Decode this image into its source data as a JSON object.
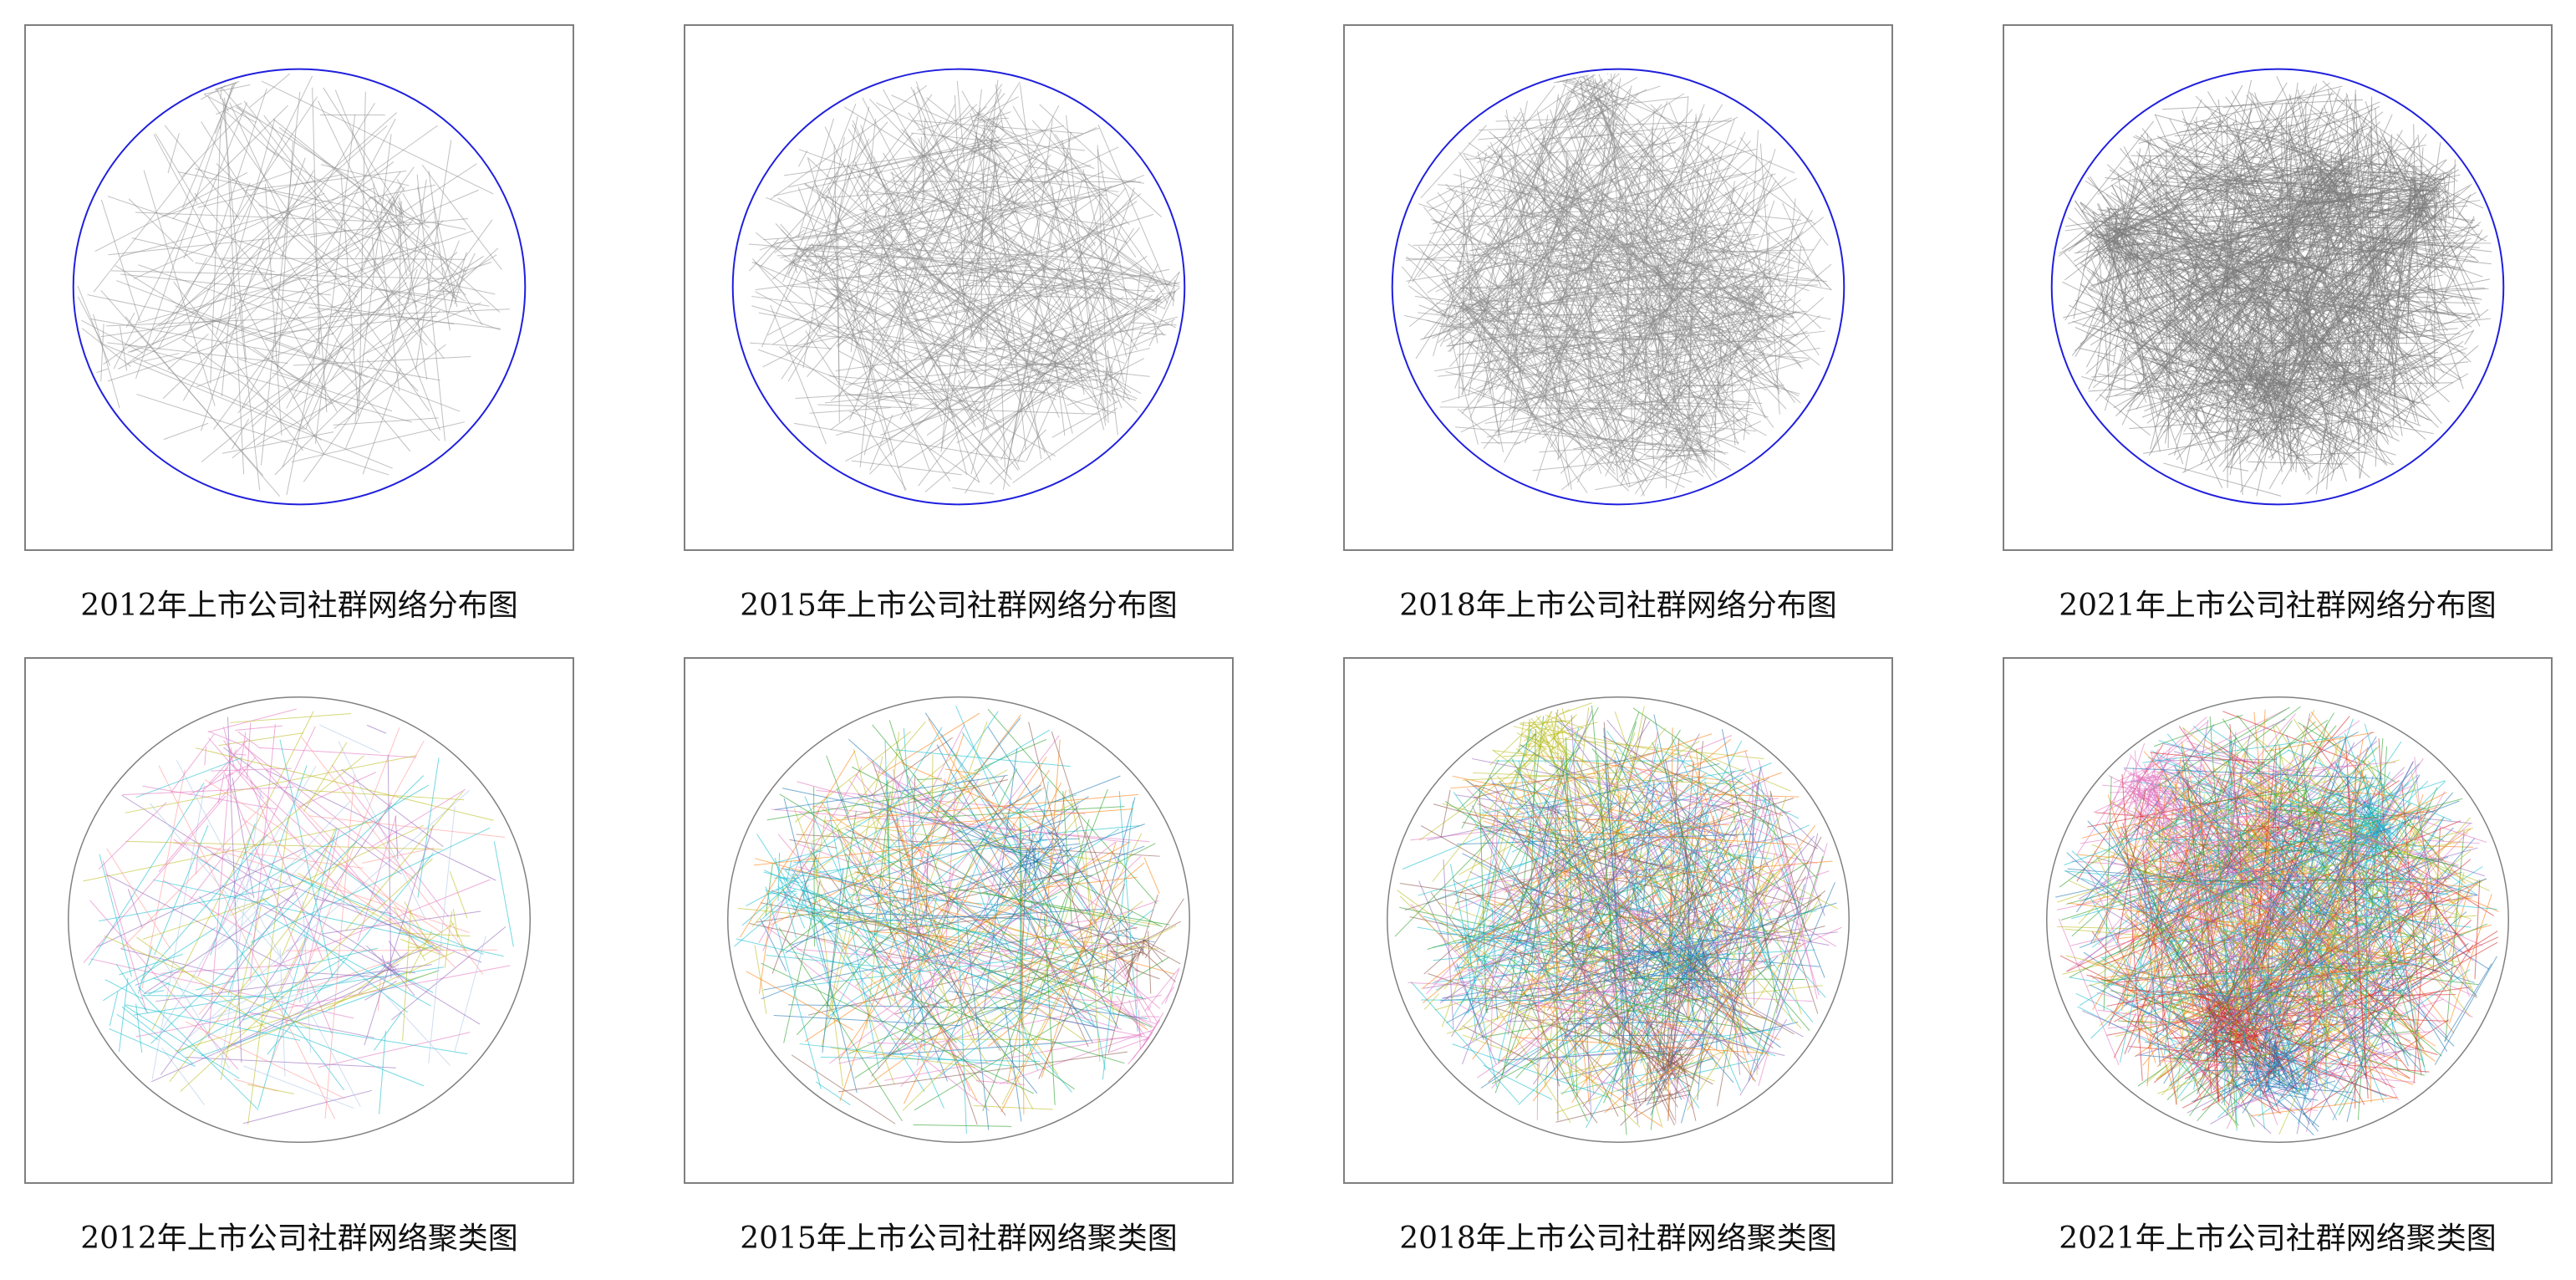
{
  "figure": {
    "panels": [
      {
        "caption": "2012年上市公司社群网络分布图",
        "kind": "distribution",
        "circle_color": "#1f1fdd",
        "edge_color": "#8c8c8c",
        "density": "low"
      },
      {
        "caption": "2015年上市公司社群网络分布图",
        "kind": "distribution",
        "circle_color": "#1f1fdd",
        "edge_color": "#8c8c8c",
        "density": "medium"
      },
      {
        "caption": "2018年上市公司社群网络分布图",
        "kind": "distribution",
        "circle_color": "#1f1fdd",
        "edge_color": "#8c8c8c",
        "density": "high"
      },
      {
        "caption": "2021年上市公司社群网络分布图",
        "kind": "distribution",
        "circle_color": "#1f1fdd",
        "edge_color": "#7a7a7a",
        "density": "very high"
      },
      {
        "caption": "2012年上市公司社群网络聚类图",
        "kind": "cluster",
        "circle_color": "#808080",
        "cluster_colors": [
          "#17becf",
          "#e377c2",
          "#bcbd22",
          "#9467bd",
          "#ff9896",
          "#aec7e8"
        ],
        "density": "low"
      },
      {
        "caption": "2015年上市公司社群网络聚类图",
        "kind": "cluster",
        "circle_color": "#808080",
        "cluster_colors": [
          "#8c564b",
          "#1f77b4",
          "#17becf",
          "#e377c2",
          "#2ca02c",
          "#bcbd22",
          "#ff7f0e"
        ],
        "density": "medium"
      },
      {
        "caption": "2018年上市公司社群网络聚类图",
        "kind": "cluster",
        "circle_color": "#808080",
        "cluster_colors": [
          "#1f77b4",
          "#8c564b",
          "#17becf",
          "#bcbd22",
          "#e377c2",
          "#2ca02c",
          "#ff7f0e",
          "#9467bd"
        ],
        "density": "high"
      },
      {
        "caption": "2021年上市公司社群网络聚类图",
        "kind": "cluster",
        "circle_color": "#808080",
        "cluster_colors": [
          "#d62728",
          "#1f77b4",
          "#17becf",
          "#e377c2",
          "#bcbd22",
          "#ff7f0e",
          "#9467bd",
          "#2ca02c"
        ],
        "density": "very high"
      }
    ]
  }
}
